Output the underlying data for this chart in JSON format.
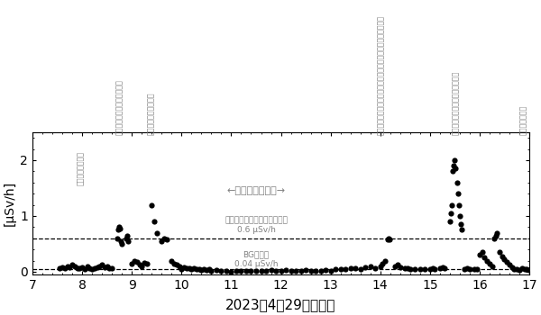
{
  "xlabel": "2023年4月29日の時刻",
  "ylabel": "[μSv/h]",
  "xlim": [
    7,
    17
  ],
  "ylim": [
    -0.05,
    2.5
  ],
  "yticks": [
    0,
    1,
    2
  ],
  "xticks": [
    7,
    8,
    9,
    10,
    11,
    12,
    13,
    14,
    15,
    16,
    17
  ],
  "hline_radiation": 0.6,
  "hline_bg": 0.04,
  "label_radiation": "放射線管理区域にすべき基準\n0.6 μSv/h",
  "label_bg": "BGレベル\n0.04 μSv/h",
  "label_minamisoma": "←南相馬市市街地→",
  "annotations": [
    {
      "text": "大久保金・さん宅",
      "x": 7.97,
      "ystart": 1.55
    },
    {
      "text": "すれ違いスペースのある道路",
      "x": 8.75,
      "ystart": 2.45
    },
    {
      "text": "飯裄村内の走行中道路",
      "x": 9.38,
      "ystart": 2.45
    },
    {
      "text": "大熊町旧役場庁舎、むき出しの土　大野駅付近、むき出しの土",
      "x": 14.02,
      "ystart": 2.45
    },
    {
      "text": "宝鏡寺到着前の　走行中一般道路",
      "x": 15.52,
      "ystart": 2.45
    },
    {
      "text": "走行中の常磤道",
      "x": 16.88,
      "ystart": 2.45
    }
  ],
  "scatter_data": [
    [
      7.55,
      0.06
    ],
    [
      7.6,
      0.08
    ],
    [
      7.65,
      0.07
    ],
    [
      7.7,
      0.1
    ],
    [
      7.75,
      0.08
    ],
    [
      7.8,
      0.12
    ],
    [
      7.85,
      0.09
    ],
    [
      7.9,
      0.06
    ],
    [
      7.95,
      0.07
    ],
    [
      8.0,
      0.08
    ],
    [
      8.05,
      0.05
    ],
    [
      8.1,
      0.09
    ],
    [
      8.15,
      0.07
    ],
    [
      8.2,
      0.05
    ],
    [
      8.25,
      0.06
    ],
    [
      8.3,
      0.08
    ],
    [
      8.35,
      0.1
    ],
    [
      8.4,
      0.12
    ],
    [
      8.45,
      0.08
    ],
    [
      8.5,
      0.09
    ],
    [
      8.55,
      0.07
    ],
    [
      8.6,
      0.06
    ],
    [
      8.7,
      0.6
    ],
    [
      8.72,
      0.75
    ],
    [
      8.74,
      0.8
    ],
    [
      8.76,
      0.78
    ],
    [
      8.78,
      0.55
    ],
    [
      8.8,
      0.5
    ],
    [
      8.88,
      0.6
    ],
    [
      8.9,
      0.65
    ],
    [
      8.92,
      0.55
    ],
    [
      9.0,
      0.15
    ],
    [
      9.05,
      0.2
    ],
    [
      9.1,
      0.18
    ],
    [
      9.15,
      0.12
    ],
    [
      9.2,
      0.1
    ],
    [
      9.25,
      0.16
    ],
    [
      9.3,
      0.14
    ],
    [
      9.4,
      1.2
    ],
    [
      9.45,
      0.9
    ],
    [
      9.5,
      0.7
    ],
    [
      9.6,
      0.55
    ],
    [
      9.65,
      0.6
    ],
    [
      9.7,
      0.58
    ],
    [
      9.8,
      0.2
    ],
    [
      9.85,
      0.15
    ],
    [
      9.9,
      0.12
    ],
    [
      9.95,
      0.1
    ],
    [
      10.0,
      0.05
    ],
    [
      10.05,
      0.08
    ],
    [
      10.1,
      0.07
    ],
    [
      10.15,
      0.06
    ],
    [
      10.2,
      0.05
    ],
    [
      10.25,
      0.06
    ],
    [
      10.3,
      0.04
    ],
    [
      10.35,
      0.05
    ],
    [
      10.4,
      0.03
    ],
    [
      10.45,
      0.04
    ],
    [
      10.5,
      0.03
    ],
    [
      10.55,
      0.04
    ],
    [
      10.6,
      0.02
    ],
    [
      10.7,
      0.03
    ],
    [
      10.8,
      0.01
    ],
    [
      10.9,
      0.02
    ],
    [
      11.0,
      0.0
    ],
    [
      11.1,
      0.01
    ],
    [
      11.2,
      0.02
    ],
    [
      11.3,
      0.01
    ],
    [
      11.4,
      0.02
    ],
    [
      11.5,
      0.01
    ],
    [
      11.6,
      0.02
    ],
    [
      11.7,
      0.02
    ],
    [
      11.8,
      0.03
    ],
    [
      11.9,
      0.02
    ],
    [
      12.0,
      0.02
    ],
    [
      12.1,
      0.03
    ],
    [
      12.2,
      0.02
    ],
    [
      12.3,
      0.01
    ],
    [
      12.4,
      0.02
    ],
    [
      12.5,
      0.03
    ],
    [
      12.6,
      0.02
    ],
    [
      12.7,
      0.01
    ],
    [
      12.8,
      0.02
    ],
    [
      12.9,
      0.03
    ],
    [
      13.0,
      0.02
    ],
    [
      13.1,
      0.04
    ],
    [
      13.2,
      0.05
    ],
    [
      13.3,
      0.04
    ],
    [
      13.4,
      0.06
    ],
    [
      13.5,
      0.07
    ],
    [
      13.6,
      0.05
    ],
    [
      13.7,
      0.08
    ],
    [
      13.8,
      0.09
    ],
    [
      13.9,
      0.07
    ],
    [
      14.0,
      0.1
    ],
    [
      14.05,
      0.15
    ],
    [
      14.1,
      0.2
    ],
    [
      14.15,
      0.58
    ],
    [
      14.17,
      0.6
    ],
    [
      14.19,
      0.58
    ],
    [
      14.3,
      0.1
    ],
    [
      14.35,
      0.12
    ],
    [
      14.4,
      0.08
    ],
    [
      14.5,
      0.06
    ],
    [
      14.55,
      0.07
    ],
    [
      14.6,
      0.05
    ],
    [
      14.7,
      0.05
    ],
    [
      14.8,
      0.04
    ],
    [
      14.9,
      0.05
    ],
    [
      15.0,
      0.05
    ],
    [
      15.05,
      0.06
    ],
    [
      15.1,
      0.04
    ],
    [
      15.2,
      0.07
    ],
    [
      15.25,
      0.08
    ],
    [
      15.3,
      0.06
    ],
    [
      15.4,
      0.9
    ],
    [
      15.42,
      1.05
    ],
    [
      15.44,
      1.2
    ],
    [
      15.46,
      1.8
    ],
    [
      15.48,
      1.9
    ],
    [
      15.5,
      2.0
    ],
    [
      15.52,
      1.85
    ],
    [
      15.54,
      1.6
    ],
    [
      15.56,
      1.4
    ],
    [
      15.58,
      1.2
    ],
    [
      15.6,
      1.0
    ],
    [
      15.62,
      0.85
    ],
    [
      15.64,
      0.75
    ],
    [
      15.7,
      0.05
    ],
    [
      15.75,
      0.06
    ],
    [
      15.8,
      0.05
    ],
    [
      15.9,
      0.04
    ],
    [
      15.95,
      0.05
    ],
    [
      16.0,
      0.3
    ],
    [
      16.05,
      0.35
    ],
    [
      16.1,
      0.25
    ],
    [
      16.15,
      0.2
    ],
    [
      16.2,
      0.15
    ],
    [
      16.25,
      0.1
    ],
    [
      16.3,
      0.6
    ],
    [
      16.32,
      0.65
    ],
    [
      16.34,
      0.7
    ],
    [
      16.4,
      0.35
    ],
    [
      16.45,
      0.28
    ],
    [
      16.5,
      0.22
    ],
    [
      16.55,
      0.18
    ],
    [
      16.6,
      0.12
    ],
    [
      16.65,
      0.08
    ],
    [
      16.7,
      0.05
    ],
    [
      16.75,
      0.04
    ],
    [
      16.8,
      0.03
    ],
    [
      16.85,
      0.06
    ],
    [
      16.9,
      0.05
    ],
    [
      16.95,
      0.04
    ],
    [
      17.0,
      0.03
    ]
  ],
  "figsize": [
    6.0,
    3.5
  ],
  "dpi": 100,
  "plot_bg_color": "#ffffff"
}
